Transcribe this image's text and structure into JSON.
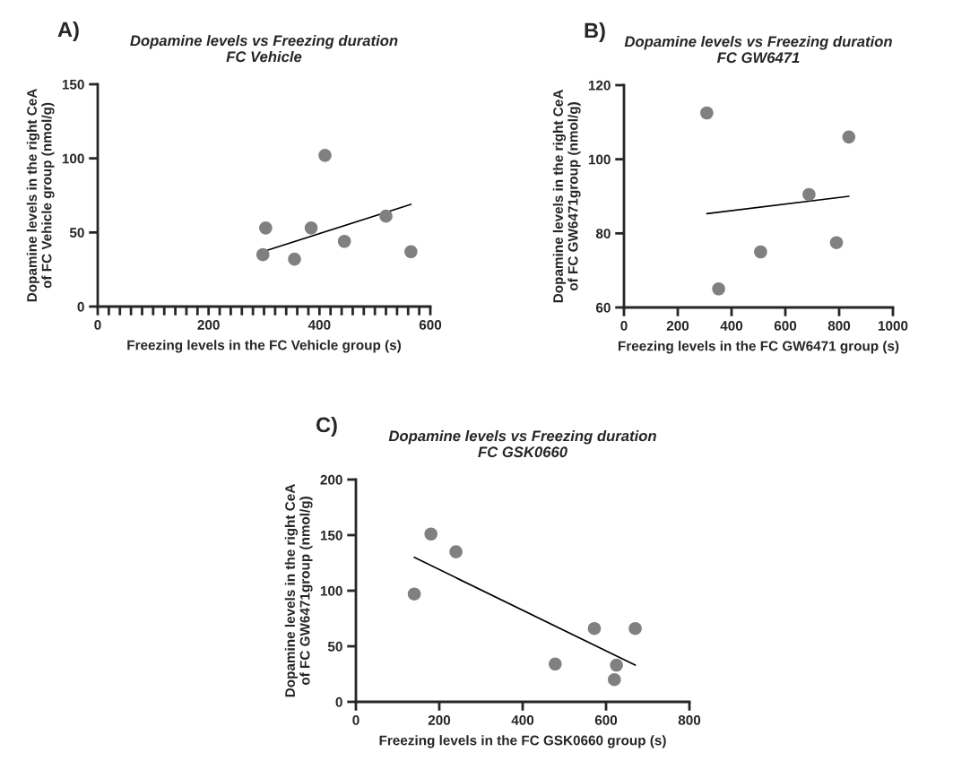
{
  "chart_data": [
    {
      "type": "scatter",
      "title": "Dopamine levels vs Freezing duration\nFC Vehicle",
      "xlabel": "Freezing levels in the FC Vehicle group (s)",
      "ylabel": "Dopamine levels in the right CeA\nof FC Vehicle group (nmol/g)",
      "annotations": [
        "A)"
      ],
      "grid": false,
      "xlim": [
        0,
        600
      ],
      "ylim": [
        0,
        150
      ],
      "yticks": [
        0,
        50,
        100,
        150
      ],
      "xticks": [
        0,
        {
          "value": 20,
          "label": null
        },
        {
          "value": 40,
          "label": null
        },
        {
          "value": 60,
          "label": null
        },
        {
          "value": 80,
          "label": null
        },
        {
          "value": 100,
          "label": null
        },
        {
          "value": 120,
          "label": null
        },
        {
          "value": 140,
          "label": null
        },
        {
          "value": 160,
          "label": null
        },
        {
          "value": 180,
          "label": null
        },
        200,
        {
          "value": 220,
          "label": null
        },
        {
          "value": 240,
          "label": null
        },
        {
          "value": 260,
          "label": null
        },
        {
          "value": 280,
          "label": null
        },
        {
          "value": 300,
          "label": null
        },
        {
          "value": 320,
          "label": null
        },
        {
          "value": 340,
          "label": null
        },
        {
          "value": 360,
          "label": null
        },
        {
          "value": 380,
          "label": null
        },
        400,
        {
          "value": 420,
          "label": null
        },
        {
          "value": 440,
          "label": null
        },
        {
          "value": 460,
          "label": null
        },
        {
          "value": 480,
          "label": null
        },
        {
          "value": 500,
          "label": null
        },
        {
          "value": 520,
          "label": null
        },
        {
          "value": 540,
          "label": null
        },
        {
          "value": 560,
          "label": null
        },
        {
          "value": 580,
          "label": null
        },
        600
      ],
      "series": [
        {
          "marker": "circle",
          "color": "#808080",
          "x": [
            298,
            303,
            355,
            385,
            410,
            445,
            520,
            565
          ],
          "values": [
            35,
            53,
            32,
            53,
            102,
            44,
            61,
            37
          ]
        },
        {
          "type": "line",
          "color": "#000000",
          "x": [
            298,
            565
          ],
          "values": [
            37,
            69
          ]
        }
      ]
    },
    {
      "type": "scatter",
      "title": "Dopamine levels vs Freezing duration\nFC GW6471",
      "xlabel": "Freezing levels in the FC GW6471 group (s)",
      "ylabel": "Dopamine levels in the right CeA\nof FC GW6471group (nmol/g)",
      "annotations": [
        "B)"
      ],
      "grid": false,
      "xlim": [
        0,
        1000
      ],
      "ylim": [
        60,
        120
      ],
      "xticks": [
        0,
        200,
        400,
        600,
        800,
        1000
      ],
      "yticks": [
        60,
        80,
        100,
        120
      ],
      "series": [
        {
          "marker": "circle",
          "color": "#808080",
          "x": [
            308,
            352,
            508,
            688,
            790,
            836
          ],
          "values": [
            112.5,
            65,
            75,
            90.5,
            77.5,
            106
          ]
        },
        {
          "type": "line",
          "color": "#000000",
          "x": [
            308,
            836
          ],
          "values": [
            85.3,
            90
          ]
        }
      ]
    },
    {
      "type": "scatter",
      "title": "Dopamine levels vs Freezing duration\nFC GSK0660",
      "xlabel": "Freezing levels in the FC GSK0660 group (s)",
      "ylabel": "Dopamine levels in the right CeA\nof FC GW6471group (nmol/g)",
      "annotations": [
        "C)"
      ],
      "grid": false,
      "xlim": [
        0,
        800
      ],
      "ylim": [
        0,
        200
      ],
      "xticks": [
        0,
        200,
        400,
        600,
        800
      ],
      "yticks": [
        0,
        50,
        100,
        150,
        200
      ],
      "series": [
        {
          "marker": "circle",
          "color": "#808080",
          "x": [
            140,
            180,
            240,
            478,
            572,
            620,
            625,
            670
          ],
          "values": [
            97,
            151,
            135,
            34,
            66,
            20,
            33,
            66
          ]
        },
        {
          "type": "line",
          "color": "#000000",
          "x": [
            140,
            670
          ],
          "values": [
            130,
            33
          ]
        }
      ]
    }
  ]
}
